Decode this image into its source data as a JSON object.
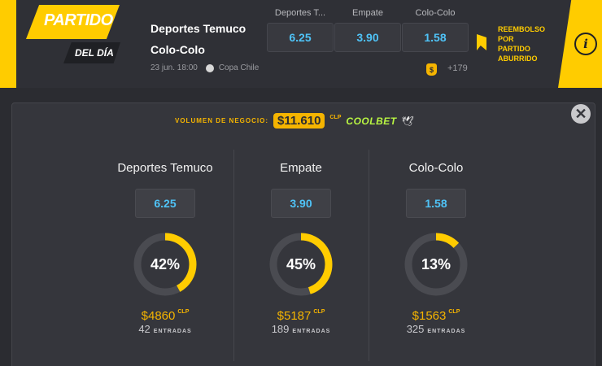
{
  "header": {
    "badge_line1": "PARTIDO",
    "badge_line2": "DEL DÍA",
    "home_team": "Deportes Temuco",
    "away_team": "Colo-Colo",
    "date": "23 jun. 18:00",
    "competition": "Copa Chile",
    "odds": [
      {
        "label": "Deportes T...",
        "value": "6.25"
      },
      {
        "label": "Empate",
        "value": "3.90"
      },
      {
        "label": "Colo-Colo",
        "value": "1.58"
      }
    ],
    "coin_icon": "money-bag-icon",
    "more_markets": "+179",
    "refund_text_1": "REEMBOLSO",
    "refund_text_2": "POR",
    "refund_text_3": "PARTIDO",
    "refund_text_4": "ABURRIDO",
    "info_symbol": "i"
  },
  "panel": {
    "close_symbol": "✕",
    "volume_label": "VOLUMEN DE NEGOCIO:",
    "volume_amount": "$11.610",
    "volume_currency": "CLP",
    "brand": "COOLBET",
    "columns": [
      {
        "name": "Deportes Temuco",
        "odd": "6.25",
        "percent": 42,
        "percent_label": "42%",
        "amount": "$4860",
        "currency": "CLP",
        "entries": "42",
        "entries_label": "ENTRADAS"
      },
      {
        "name": "Empate",
        "odd": "3.90",
        "percent": 45,
        "percent_label": "45%",
        "amount": "$5187",
        "currency": "CLP",
        "entries": "189",
        "entries_label": "ENTRADAS"
      },
      {
        "name": "Colo-Colo",
        "odd": "1.58",
        "percent": 13,
        "percent_label": "13%",
        "amount": "$1563",
        "currency": "CLP",
        "entries": "325",
        "entries_label": "ENTRADAS"
      }
    ]
  },
  "colors": {
    "accent": "#ffcc00",
    "odds_text": "#4fc3f7",
    "ring_track": "#4a4b51",
    "background": "#2b2c31"
  }
}
